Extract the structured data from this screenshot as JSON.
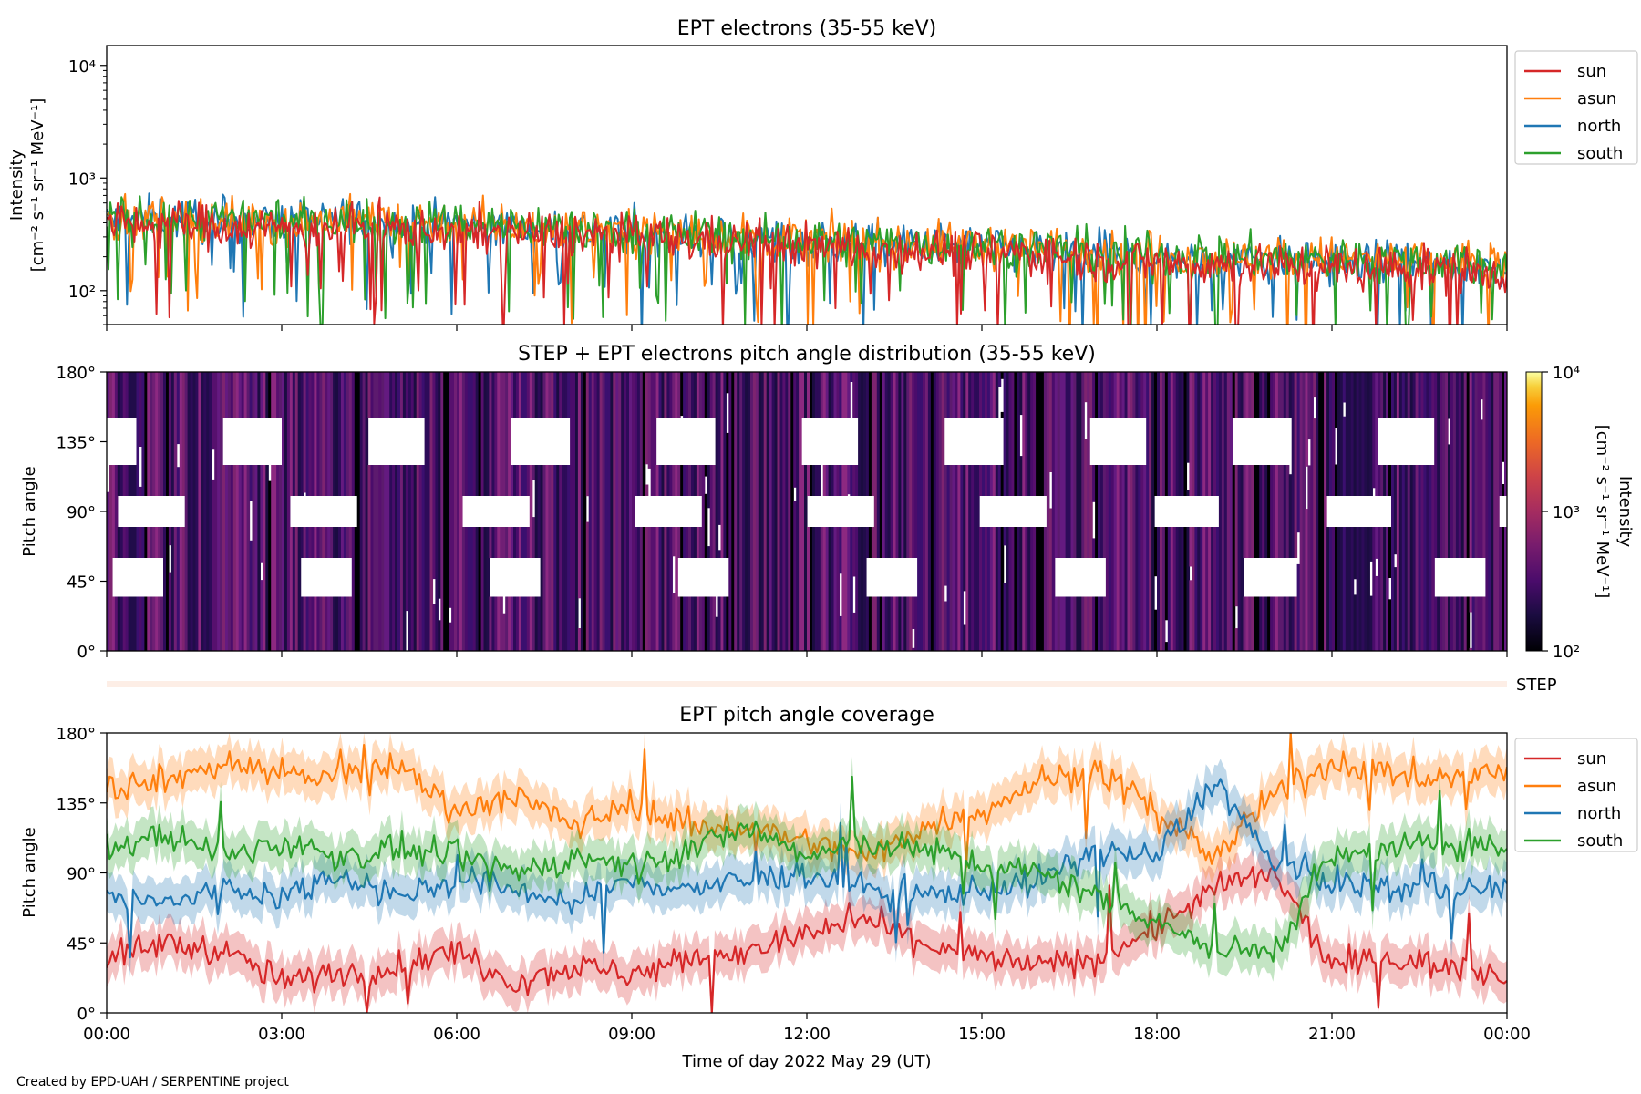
{
  "figure": {
    "credit": "Created by EPD-UAH / SERPENTINE project",
    "xlabel": "Time of day 2022 May 29 (UT)"
  },
  "chart_data": [
    {
      "type": "line",
      "title": "EPT electrons (35-55 keV)",
      "ylabel_line1": "Intensity",
      "ylabel_line2": "[cm⁻² s⁻¹ sr⁻¹ MeV⁻¹]",
      "yscale": "log",
      "ylim": [
        50,
        15000
      ],
      "yticks": [
        {
          "v": 100,
          "label": "10²"
        },
        {
          "v": 1000,
          "label": "10³"
        },
        {
          "v": 10000,
          "label": "10⁴"
        }
      ],
      "xlim": [
        "00:00",
        "24:00"
      ],
      "legend_position": "outside-right-top",
      "series": [
        {
          "name": "sun",
          "color": "#d62728",
          "median": [
            380,
            400,
            370,
            360,
            380,
            350,
            340,
            330,
            320,
            300,
            280,
            270,
            250,
            240,
            230,
            220,
            210,
            190,
            180,
            170,
            170,
            160,
            160,
            150,
            150
          ]
        },
        {
          "name": "asun",
          "color": "#ff7f0e",
          "median": [
            420,
            450,
            420,
            400,
            430,
            420,
            400,
            380,
            360,
            340,
            320,
            300,
            280,
            270,
            260,
            250,
            240,
            220,
            210,
            200,
            200,
            190,
            190,
            180,
            180
          ]
        },
        {
          "name": "north",
          "color": "#1f77b4",
          "median": [
            420,
            440,
            420,
            410,
            420,
            400,
            380,
            370,
            350,
            330,
            310,
            290,
            270,
            260,
            250,
            240,
            230,
            210,
            200,
            190,
            190,
            180,
            180,
            170,
            170
          ]
        },
        {
          "name": "south",
          "color": "#2ca02c",
          "median": [
            430,
            450,
            430,
            410,
            430,
            410,
            390,
            380,
            360,
            340,
            320,
            300,
            280,
            270,
            260,
            250,
            240,
            220,
            210,
            200,
            200,
            190,
            190,
            180,
            180
          ]
        }
      ]
    },
    {
      "type": "heatmap",
      "title": "STEP + EPT electrons pitch angle distribution (35-55 keV)",
      "ylabel": "Pitch angle",
      "ylim": [
        0,
        180
      ],
      "yticks": [
        "0°",
        "45°",
        "90°",
        "135°",
        "180°"
      ],
      "colormap": "inferno",
      "colorbar_label_line1": "Intensity",
      "colorbar_label_line2": "[cm⁻² s⁻¹ sr⁻¹ MeV⁻¹]",
      "colorbar_range": [
        100,
        10000
      ],
      "colorbar_ticks": [
        "10²",
        "10³",
        "10⁴"
      ],
      "typical_intensity": [
        100,
        400
      ]
    },
    {
      "type": "line",
      "title": "EPT pitch angle coverage",
      "ylabel": "Pitch angle",
      "ylim": [
        0,
        180
      ],
      "yticks": [
        "0°",
        "45°",
        "90°",
        "135°",
        "180°"
      ],
      "xticks": [
        "00:00",
        "03:00",
        "06:00",
        "09:00",
        "12:00",
        "15:00",
        "18:00",
        "21:00",
        "00:00"
      ],
      "legend_position": "outside-right-top",
      "strip_label": "STEP",
      "series": [
        {
          "name": "sun",
          "color": "#d62728",
          "x_hours": [
            0,
            1,
            2,
            3,
            4,
            5,
            6,
            7,
            8,
            9,
            10,
            11,
            12,
            13,
            14,
            15,
            16,
            17,
            18,
            19,
            20,
            21,
            22,
            23,
            24
          ],
          "values": [
            35,
            45,
            40,
            20,
            25,
            30,
            40,
            20,
            30,
            25,
            35,
            40,
            50,
            60,
            45,
            35,
            30,
            35,
            55,
            80,
            90,
            30,
            35,
            30,
            25
          ]
        },
        {
          "name": "asun",
          "color": "#ff7f0e",
          "x_hours": [
            0,
            1,
            2,
            3,
            4,
            5,
            6,
            7,
            8,
            9,
            10,
            11,
            12,
            13,
            14,
            15,
            16,
            17,
            18,
            19,
            20,
            21,
            22,
            23,
            24
          ],
          "values": [
            145,
            150,
            160,
            155,
            150,
            160,
            130,
            140,
            120,
            135,
            120,
            120,
            110,
            100,
            120,
            130,
            150,
            155,
            130,
            100,
            140,
            160,
            155,
            150,
            155
          ]
        },
        {
          "name": "north",
          "color": "#1f77b4",
          "x_hours": [
            0,
            1,
            2,
            3,
            4,
            5,
            6,
            7,
            8,
            9,
            10,
            11,
            12,
            13,
            14,
            15,
            16,
            17,
            18,
            19,
            20,
            21,
            22,
            23,
            24
          ],
          "values": [
            75,
            70,
            80,
            75,
            90,
            75,
            85,
            80,
            70,
            85,
            80,
            85,
            90,
            80,
            75,
            80,
            85,
            105,
            100,
            150,
            95,
            85,
            80,
            80,
            80
          ]
        },
        {
          "name": "south",
          "color": "#2ca02c",
          "x_hours": [
            0,
            1,
            2,
            3,
            4,
            5,
            6,
            7,
            8,
            9,
            10,
            11,
            12,
            13,
            14,
            15,
            16,
            17,
            18,
            19,
            20,
            21,
            22,
            23,
            24
          ],
          "values": [
            105,
            115,
            100,
            110,
            100,
            105,
            100,
            90,
            100,
            95,
            105,
            120,
            100,
            110,
            105,
            95,
            90,
            75,
            60,
            40,
            40,
            100,
            105,
            110,
            105
          ]
        }
      ]
    }
  ]
}
